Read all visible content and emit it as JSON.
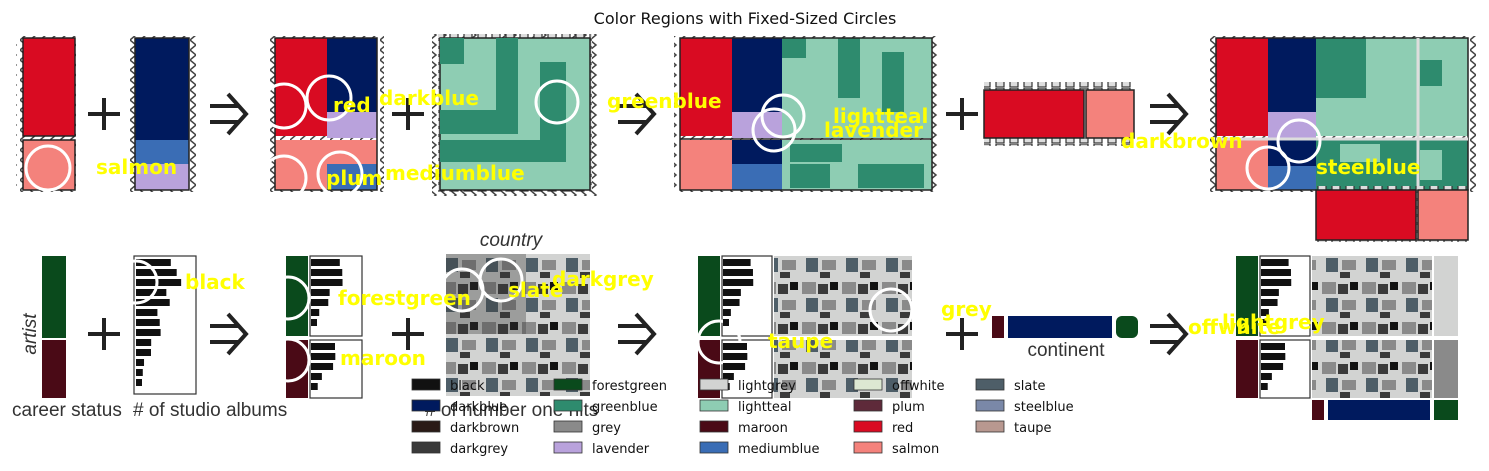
{
  "title": "Color Regions with Fixed-Sized Circles",
  "region_labels": {
    "salmon": "salmon",
    "red": "red",
    "darkblue": "darkblue",
    "plum": "plum",
    "mediumblue": "mediumblue",
    "greenblue": "greenblue",
    "lightteal": "lightteal",
    "lavender": "lavender",
    "darkbrown": "darkbrown",
    "steelblue": "steelblue",
    "black": "black",
    "forestgreen": "forestgreen",
    "maroon": "maroon",
    "slate": "slate",
    "darkgrey": "darkgrey",
    "taupe": "taupe",
    "grey": "grey",
    "offwhite": "offwhite",
    "lightgrey": "lightgrey"
  },
  "axis_labels": {
    "country": "country",
    "artist": "artist",
    "career_status": "career status",
    "studio_albums": "# of studio albums",
    "number_one_hits": "# of number one hits",
    "continent": "continent"
  },
  "legend": [
    {
      "name": "black",
      "color": "#111111"
    },
    {
      "name": "darkblue",
      "color": "#001a5e"
    },
    {
      "name": "darkbrown",
      "color": "#2a1a16"
    },
    {
      "name": "darkgrey",
      "color": "#3a3a3a"
    },
    {
      "name": "forestgreen",
      "color": "#0a4a1c"
    },
    {
      "name": "greenblue",
      "color": "#2e8b6e"
    },
    {
      "name": "grey",
      "color": "#8a8a8a"
    },
    {
      "name": "lavender",
      "color": "#b9a2dc"
    },
    {
      "name": "lightgrey",
      "color": "#d2d3d2"
    },
    {
      "name": "lightteal",
      "color": "#8ecdb3"
    },
    {
      "name": "maroon",
      "color": "#4a0a16"
    },
    {
      "name": "mediumblue",
      "color": "#3a6db5"
    },
    {
      "name": "offwhite",
      "color": "#dde8d2"
    },
    {
      "name": "plum",
      "color": "#5e2a3a"
    },
    {
      "name": "red",
      "color": "#d90b22"
    },
    {
      "name": "salmon",
      "color": "#f4827c"
    },
    {
      "name": "slate",
      "color": "#4e5e68"
    },
    {
      "name": "steelblue",
      "color": "#7a88a8"
    },
    {
      "name": "taupe",
      "color": "#b89890"
    }
  ]
}
